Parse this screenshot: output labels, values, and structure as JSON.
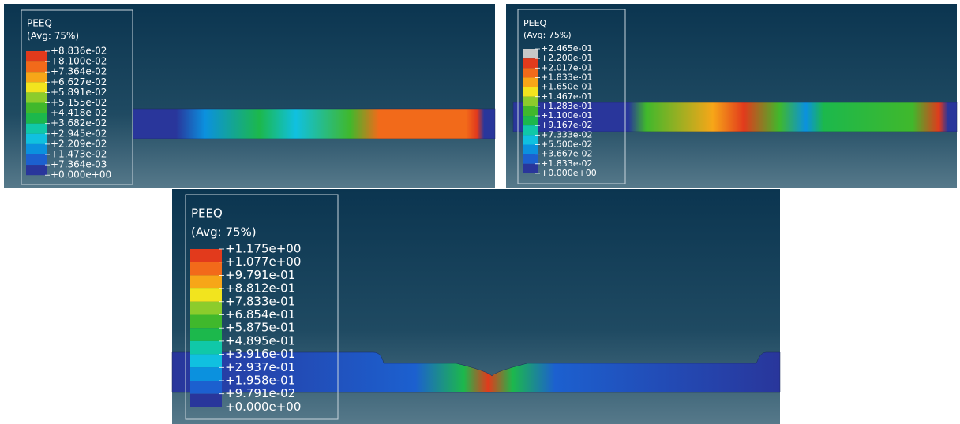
{
  "panels": [
    {
      "legend": {
        "variable": "PEEQ",
        "averaging": "(Avg: 75%)",
        "labels": [
          "+8.836e-02",
          "+8.100e-02",
          "+7.364e-02",
          "+6.627e-02",
          "+5.891e-02",
          "+5.155e-02",
          "+4.418e-02",
          "+3.682e-02",
          "+2.945e-02",
          "+2.209e-02",
          "+1.473e-02",
          "+7.364e-03",
          "+0.000e+00"
        ]
      }
    },
    {
      "legend": {
        "variable": "PEEQ",
        "averaging": "(Avg: 75%)",
        "labels": [
          "+2.465e-01",
          "+2.200e-01",
          "+2.017e-01",
          "+1.833e-01",
          "+1.650e-01",
          "+1.467e-01",
          "+1.283e-01",
          "+1.100e-01",
          "+9.167e-02",
          "+7.333e-02",
          "+5.500e-02",
          "+3.667e-02",
          "+1.833e-02",
          "+0.000e+00"
        ]
      }
    },
    {
      "legend": {
        "variable": "PEEQ",
        "averaging": "(Avg: 75%)",
        "labels": [
          "+1.175e+00",
          "+1.077e+00",
          "+9.791e-01",
          "+8.812e-01",
          "+7.833e-01",
          "+6.854e-01",
          "+5.875e-01",
          "+4.895e-01",
          "+3.916e-01",
          "+2.937e-01",
          "+1.958e-01",
          "+9.791e-02",
          "+0.000e+00"
        ]
      }
    }
  ]
}
